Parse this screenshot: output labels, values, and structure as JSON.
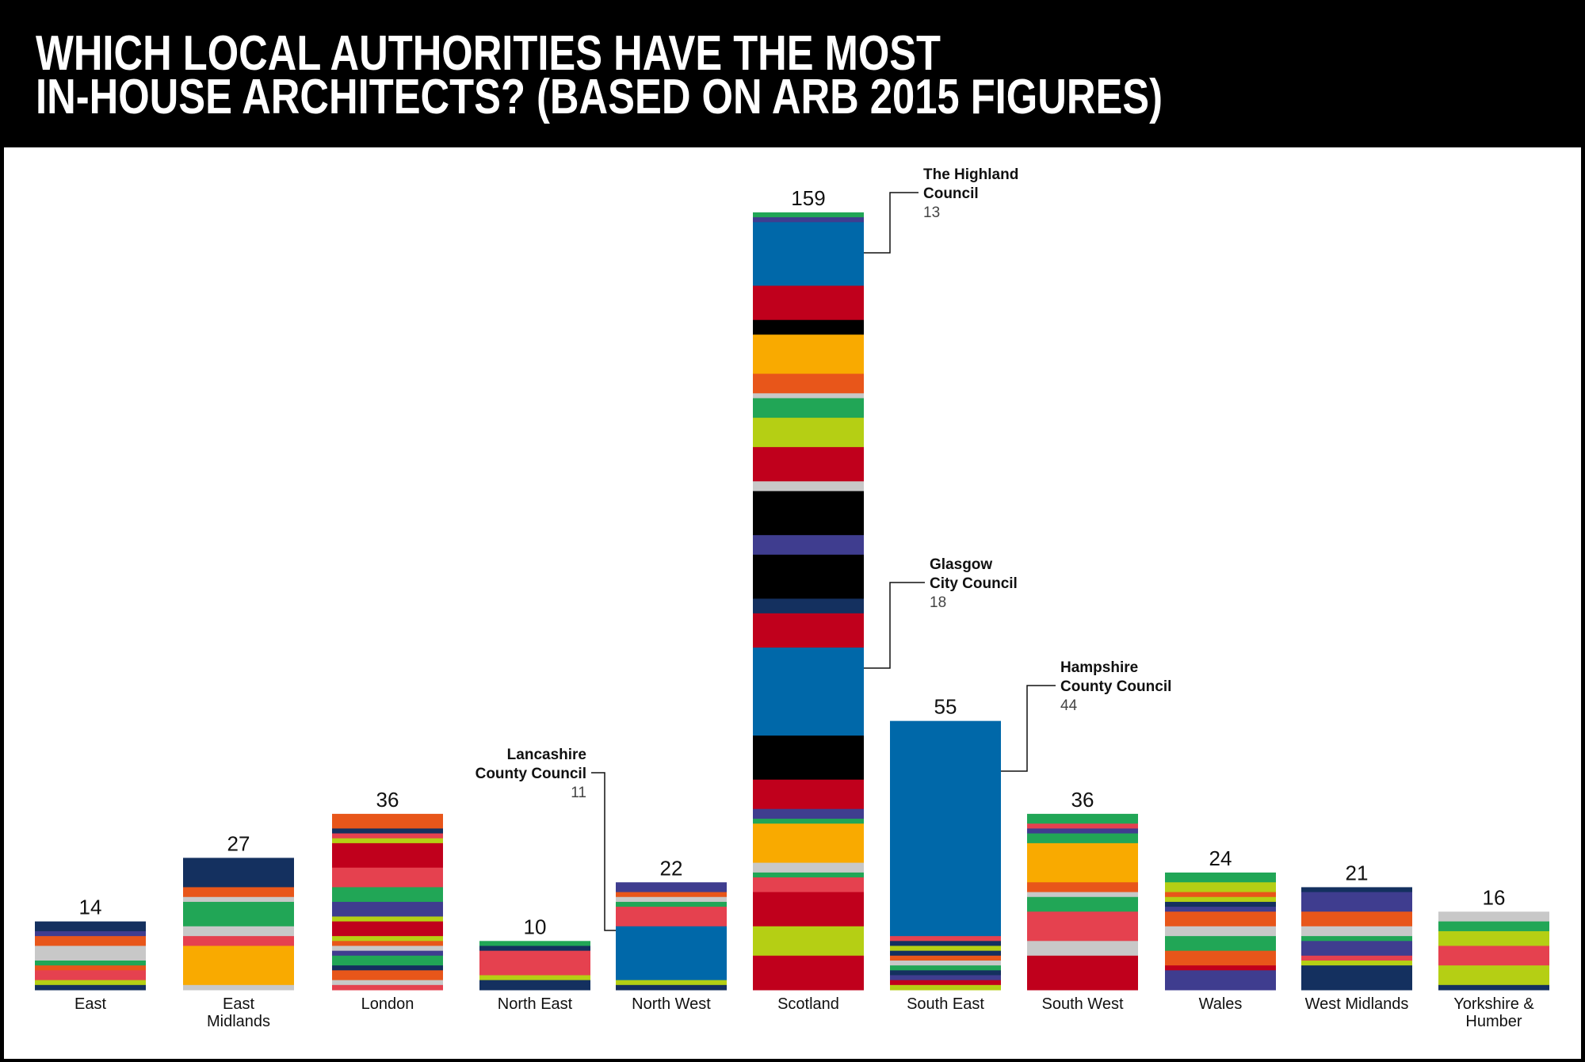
{
  "chart_data": {
    "type": "bar",
    "stacked": true,
    "title": [
      "WHICH LOCAL AUTHORITIES HAVE THE MOST",
      "IN-HOUSE ARCHITECTS? (BASED ON ARB 2015 FIGURES)"
    ],
    "xlabel": "",
    "ylabel": "",
    "grid": false,
    "categories": [
      [
        "East"
      ],
      [
        "East",
        "Midlands"
      ],
      [
        "London"
      ],
      [
        "North East"
      ],
      [
        "North West"
      ],
      [
        "Scotland"
      ],
      [
        "South East"
      ],
      [
        "South West"
      ],
      [
        "Wales"
      ],
      [
        "West Midlands"
      ],
      [
        "Yorkshire &",
        "Humber"
      ]
    ],
    "values": [
      14,
      27,
      36,
      10,
      22,
      159,
      55,
      36,
      24,
      21,
      16
    ],
    "colors": {
      "navy": "#14305f",
      "purple": "#3f3d8f",
      "orange": "#e8561a",
      "grey": "#c8c8c8",
      "green": "#21a656",
      "pink": "#e5414f",
      "lime": "#b5cf14",
      "red": "#c0001c",
      "yellow": "#f9aa00",
      "blue": "#0068a9",
      "black": "#000000"
    },
    "segments": [
      [
        [
          "navy",
          2
        ],
        [
          "purple",
          1
        ],
        [
          "orange",
          2
        ],
        [
          "grey",
          3
        ],
        [
          "green",
          1
        ],
        [
          "orange",
          1
        ],
        [
          "pink",
          2
        ],
        [
          "lime",
          1
        ],
        [
          "navy",
          1
        ]
      ],
      [
        [
          "navy",
          6
        ],
        [
          "orange",
          2
        ],
        [
          "grey",
          1
        ],
        [
          "green",
          5
        ],
        [
          "grey",
          2
        ],
        [
          "pink",
          2
        ],
        [
          "yellow",
          8
        ],
        [
          "grey",
          1
        ]
      ],
      [
        [
          "orange",
          3
        ],
        [
          "navy",
          1
        ],
        [
          "pink",
          1
        ],
        [
          "lime",
          1
        ],
        [
          "red",
          5
        ],
        [
          "pink",
          4
        ],
        [
          "green",
          3
        ],
        [
          "purple",
          3
        ],
        [
          "lime",
          1
        ],
        [
          "red",
          3
        ],
        [
          "lime",
          1
        ],
        [
          "orange",
          1
        ],
        [
          "grey",
          1
        ],
        [
          "purple",
          1
        ],
        [
          "green",
          2
        ],
        [
          "navy",
          1
        ],
        [
          "orange",
          2
        ],
        [
          "grey",
          1
        ],
        [
          "pink",
          1
        ]
      ],
      [
        [
          "green",
          1
        ],
        [
          "navy",
          1
        ],
        [
          "pink",
          5
        ],
        [
          "lime",
          1
        ],
        [
          "navy",
          2
        ]
      ],
      [
        [
          "purple",
          2
        ],
        [
          "orange",
          1
        ],
        [
          "grey",
          1
        ],
        [
          "green",
          1
        ],
        [
          "pink",
          4
        ],
        [
          "blue",
          11
        ],
        [
          "lime",
          1
        ],
        [
          "navy",
          1
        ]
      ],
      [
        [
          "green",
          1
        ],
        [
          "purple",
          1
        ],
        [
          "blue",
          13
        ],
        [
          "red",
          7
        ],
        [
          "black",
          3
        ],
        [
          "yellow",
          8
        ],
        [
          "orange",
          4
        ],
        [
          "grey",
          1
        ],
        [
          "green",
          4
        ],
        [
          "lime",
          6
        ],
        [
          "red",
          7
        ],
        [
          "grey",
          2
        ],
        [
          "black",
          9
        ],
        [
          "purple",
          4
        ],
        [
          "black",
          9
        ],
        [
          "navy",
          3
        ],
        [
          "red",
          7
        ],
        [
          "blue",
          18
        ],
        [
          "black",
          9
        ],
        [
          "red",
          6
        ],
        [
          "purple",
          2
        ],
        [
          "green",
          1
        ],
        [
          "yellow",
          8
        ],
        [
          "grey",
          2
        ],
        [
          "green",
          1
        ],
        [
          "pink",
          3
        ],
        [
          "red",
          7
        ],
        [
          "lime",
          6
        ],
        [
          "red",
          7
        ]
      ],
      [
        [
          "blue",
          44
        ],
        [
          "pink",
          1
        ],
        [
          "navy",
          1
        ],
        [
          "lime",
          1
        ],
        [
          "navy",
          1
        ],
        [
          "orange",
          1
        ],
        [
          "grey",
          1
        ],
        [
          "green",
          1
        ],
        [
          "navy",
          1
        ],
        [
          "purple",
          1
        ],
        [
          "red",
          1
        ],
        [
          "lime",
          1
        ]
      ],
      [
        [
          "green",
          2
        ],
        [
          "pink",
          1
        ],
        [
          "purple",
          1
        ],
        [
          "green",
          2
        ],
        [
          "yellow",
          8
        ],
        [
          "orange",
          2
        ],
        [
          "grey",
          1
        ],
        [
          "green",
          3
        ],
        [
          "pink",
          6
        ],
        [
          "grey",
          3
        ],
        [
          "red",
          7
        ]
      ],
      [
        [
          "green",
          2
        ],
        [
          "lime",
          2
        ],
        [
          "orange",
          1
        ],
        [
          "lime",
          1
        ],
        [
          "navy",
          1
        ],
        [
          "purple",
          1
        ],
        [
          "orange",
          3
        ],
        [
          "grey",
          2
        ],
        [
          "green",
          3
        ],
        [
          "orange",
          3
        ],
        [
          "red",
          1
        ],
        [
          "purple",
          4
        ]
      ],
      [
        [
          "navy",
          1
        ],
        [
          "purple",
          4
        ],
        [
          "orange",
          3
        ],
        [
          "grey",
          2
        ],
        [
          "green",
          1
        ],
        [
          "purple",
          3
        ],
        [
          "pink",
          1
        ],
        [
          "lime",
          1
        ],
        [
          "navy",
          5
        ]
      ],
      [
        [
          "grey",
          2
        ],
        [
          "green",
          2
        ],
        [
          "lime",
          3
        ],
        [
          "pink",
          4
        ],
        [
          "lime",
          4
        ],
        [
          "navy",
          1
        ]
      ]
    ],
    "annotations": [
      {
        "category": "Scotland",
        "name": [
          "The Highland",
          "Council"
        ],
        "value": "13",
        "side": "right"
      },
      {
        "category": "Scotland",
        "name": [
          "Glasgow",
          "City Council"
        ],
        "value": "18",
        "side": "right"
      },
      {
        "category": "South East",
        "name": [
          "Hampshire",
          "County Council"
        ],
        "value": "44",
        "side": "right"
      },
      {
        "category": "North West",
        "name": [
          "Lancashire",
          "County Council"
        ],
        "value": "11",
        "side": "left"
      }
    ]
  }
}
